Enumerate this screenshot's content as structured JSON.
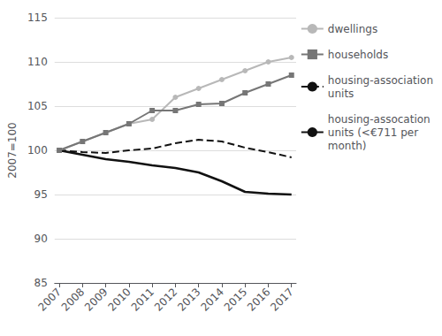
{
  "chart_data": {
    "type": "line",
    "x": [
      2007,
      2008,
      2009,
      2010,
      2011,
      2012,
      2013,
      2014,
      2015,
      2016,
      2017
    ],
    "series": [
      {
        "name": "dwellings",
        "color": "#b8b8b8",
        "marker": "circle",
        "line_style": "solid",
        "values": [
          100,
          101.0,
          102.0,
          103.0,
          103.5,
          106.0,
          107.0,
          108.0,
          109.0,
          110.0,
          110.5
        ]
      },
      {
        "name": "households",
        "color": "#767676",
        "marker": "square",
        "line_style": "solid",
        "values": [
          100,
          101.0,
          102.0,
          103.0,
          104.5,
          104.5,
          105.2,
          105.3,
          106.5,
          107.5,
          108.5
        ]
      },
      {
        "name": "housing-association\nunits",
        "color": "#111111",
        "line_style": "dashed",
        "values": [
          100,
          99.8,
          99.7,
          100.0,
          100.2,
          100.8,
          101.2,
          101.0,
          100.3,
          99.8,
          99.2
        ]
      },
      {
        "name": "housing-assocation\nunits (<€711 per\nmonth)",
        "color": "#111111",
        "line_style": "solid",
        "values": [
          100,
          99.5,
          99.0,
          98.7,
          98.3,
          98.0,
          97.5,
          96.5,
          95.3,
          95.1,
          95.0
        ]
      }
    ],
    "ylabel": "2007=100",
    "xlim": [
      2006.8,
      2017.2
    ],
    "xticks": [
      2007,
      2008,
      2009,
      2010,
      2011,
      2012,
      2013,
      2014,
      2015,
      2016,
      2017
    ],
    "ylim": [
      85,
      115
    ],
    "yticks": [
      85,
      90,
      95,
      100,
      105,
      110,
      115
    ],
    "grid": true,
    "legend": "right"
  }
}
